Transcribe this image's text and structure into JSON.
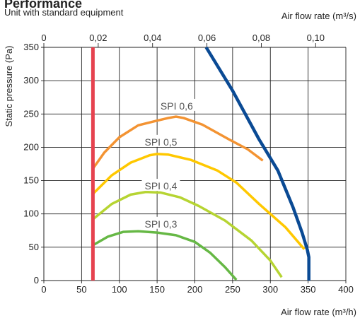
{
  "chart_data": {
    "type": "line",
    "title": "Performance",
    "subtitle": "Unit with standard equipment",
    "xlabel": "Air flow rate (m³/h)",
    "ylabel": "Static pressure (Pa)",
    "x2label": "Air flow rate (m³/s)",
    "xlim": [
      0,
      400
    ],
    "ylim": [
      0,
      350
    ],
    "x_ticks": [
      "0",
      "50",
      "100",
      "150",
      "200",
      "250",
      "300",
      "350",
      "400"
    ],
    "y_ticks": [
      "0",
      "50",
      "100",
      "150",
      "200",
      "250",
      "300",
      "350"
    ],
    "x2_ticks": [
      "0",
      "0,02",
      "0,04",
      "0,06",
      "0,08",
      "0,10"
    ],
    "x2_tick_values_m3s": [
      0,
      0.02,
      0.04,
      0.06,
      0.08,
      0.1
    ],
    "grid": true,
    "colors": {
      "spi_0_6": "#f39332",
      "spi_0_5": "#ffc800",
      "spi_0_4": "#b6d432",
      "spi_0_3": "#66b845",
      "max_curve": "#0a4a94",
      "min_limit": "#e6424f"
    },
    "series": [
      {
        "name": "SPI 0,6",
        "color_key": "spi_0_6",
        "label_at": [
          176,
          261
        ],
        "points": [
          [
            65,
            168
          ],
          [
            80,
            192
          ],
          [
            100,
            215
          ],
          [
            125,
            233
          ],
          [
            150,
            240
          ],
          [
            165,
            244
          ],
          [
            175,
            246
          ],
          [
            185,
            244
          ],
          [
            210,
            234
          ],
          [
            245,
            212
          ],
          [
            270,
            197
          ],
          [
            290,
            180
          ]
        ]
      },
      {
        "name": "SPI 0,5",
        "color_key": "spi_0_5",
        "label_at": [
          155,
          207
        ],
        "points": [
          [
            65,
            130
          ],
          [
            90,
            158
          ],
          [
            115,
            177
          ],
          [
            140,
            188
          ],
          [
            150,
            190
          ],
          [
            165,
            189
          ],
          [
            195,
            181
          ],
          [
            230,
            165
          ],
          [
            255,
            147
          ],
          [
            285,
            115
          ],
          [
            320,
            80
          ],
          [
            345,
            47
          ]
        ]
      },
      {
        "name": "SPI 0,4",
        "color_key": "spi_0_4",
        "label_at": [
          155,
          141
        ],
        "points": [
          [
            65,
            92
          ],
          [
            90,
            115
          ],
          [
            115,
            129
          ],
          [
            135,
            133
          ],
          [
            155,
            132
          ],
          [
            180,
            125
          ],
          [
            205,
            112
          ],
          [
            240,
            90
          ],
          [
            275,
            60
          ],
          [
            300,
            30
          ],
          [
            315,
            5
          ]
        ]
      },
      {
        "name": "SPI 0,3",
        "color_key": "spi_0_3",
        "label_at": [
          155,
          84
        ],
        "points": [
          [
            65,
            53
          ],
          [
            85,
            66
          ],
          [
            105,
            73
          ],
          [
            125,
            74
          ],
          [
            150,
            72
          ],
          [
            175,
            68
          ],
          [
            200,
            58
          ],
          [
            220,
            42
          ],
          [
            240,
            20
          ],
          [
            255,
            1
          ]
        ]
      },
      {
        "name": "",
        "color_key": "max_curve",
        "points": [
          [
            215,
            350
          ],
          [
            250,
            285
          ],
          [
            285,
            212
          ],
          [
            310,
            165
          ],
          [
            330,
            110
          ],
          [
            342,
            72
          ],
          [
            349,
            46
          ],
          [
            351,
            35
          ],
          [
            351,
            0
          ]
        ]
      },
      {
        "name": "",
        "color_key": "min_limit",
        "points": [
          [
            65,
            0
          ],
          [
            65,
            350
          ]
        ]
      }
    ]
  }
}
